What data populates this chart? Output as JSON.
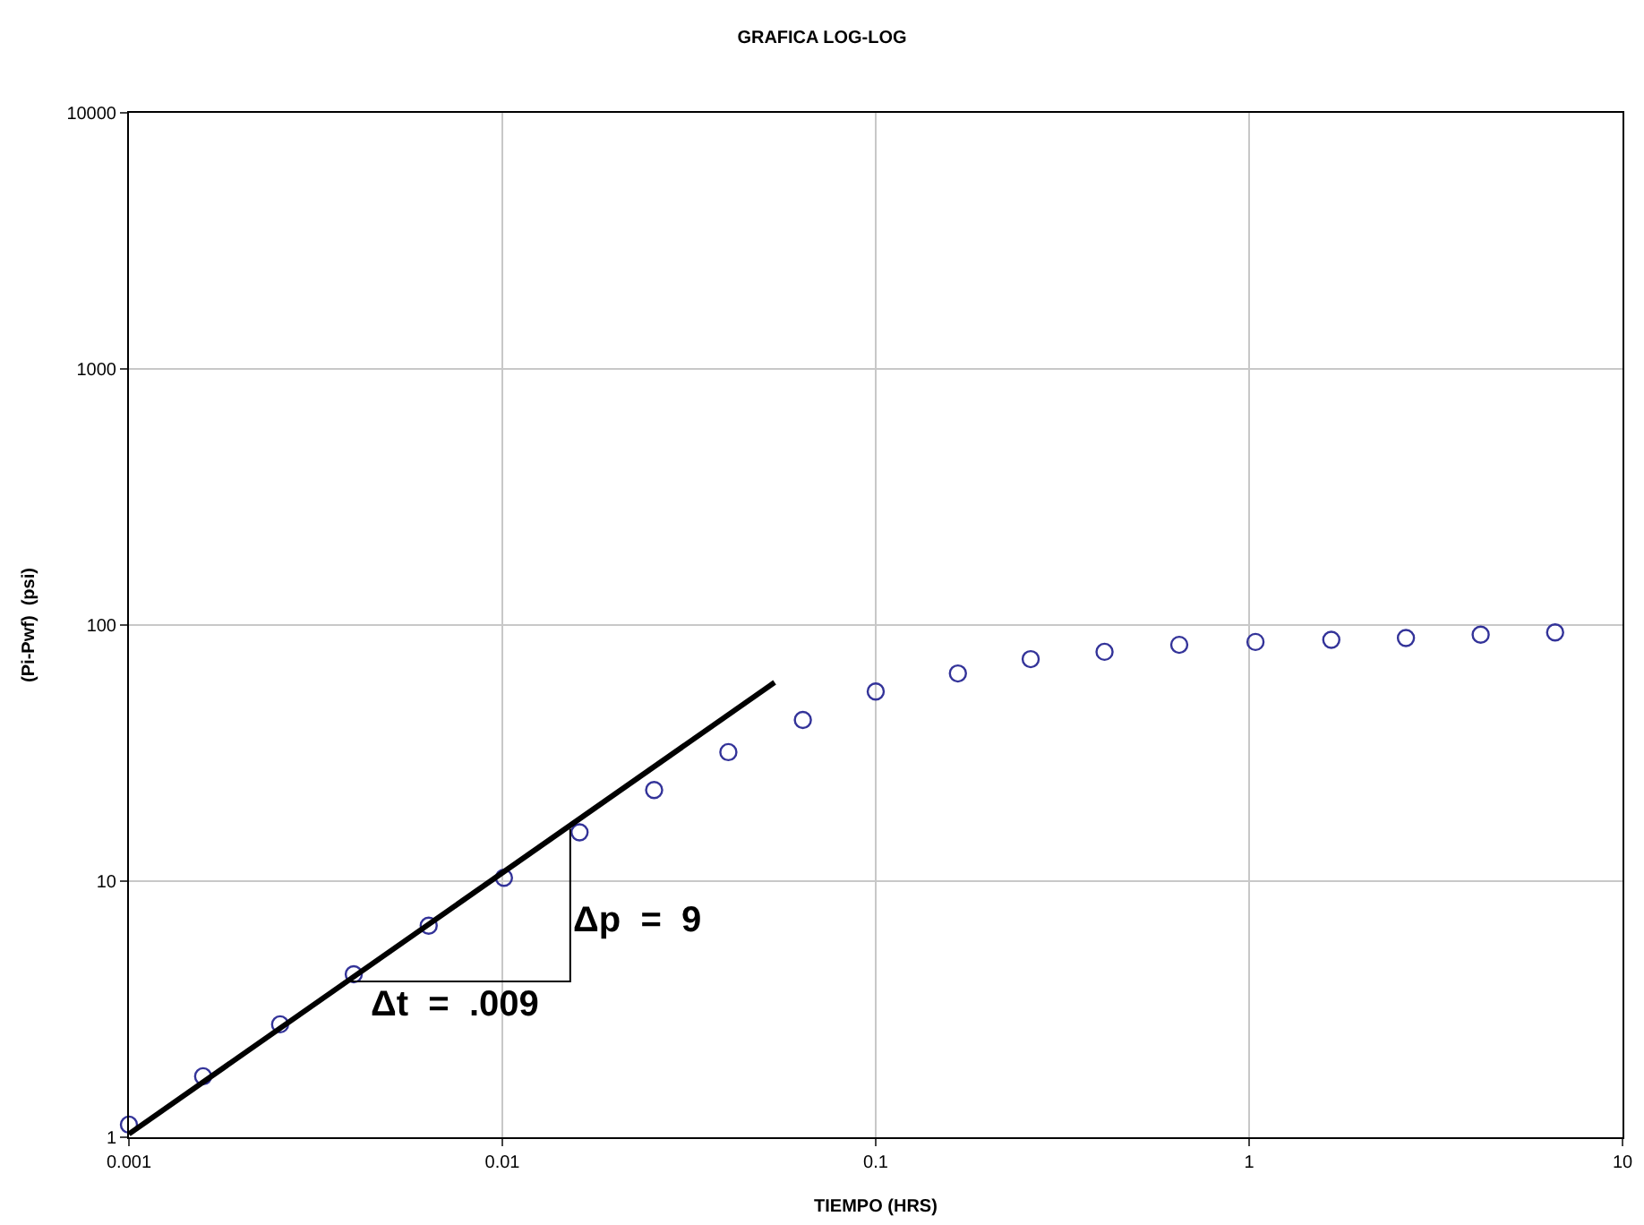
{
  "chart_data": {
    "type": "scatter",
    "title": "GRAFICA LOG-LOG",
    "xlabel": "TIEMPO (HRS)",
    "ylabel": "(Pi-Pwf)  (psi)",
    "log": "xy",
    "grid": true,
    "xlim": [
      0.001,
      10
    ],
    "xticks": [
      0.001,
      0.01,
      0.1,
      1,
      10
    ],
    "ylim": [
      1,
      10000
    ],
    "yticks": [
      1,
      10,
      100,
      1000,
      10000
    ],
    "series": [
      {
        "marker": "circle",
        "color": "#333399",
        "x": [
          0.001,
          0.00158,
          0.00254,
          0.004,
          0.00635,
          0.0101,
          0.0161,
          0.0255,
          0.0403,
          0.0638,
          0.1,
          0.166,
          0.26,
          0.41,
          0.65,
          1.04,
          1.66,
          2.63,
          4.17,
          6.6
        ],
        "values": [
          1.12,
          1.73,
          2.76,
          4.33,
          6.7,
          10.3,
          15.5,
          22.7,
          31.9,
          42.6,
          55,
          64.7,
          73.6,
          78.6,
          83.7,
          85.9,
          87.6,
          89,
          91.7,
          93.6
        ]
      },
      {
        "type": "line",
        "marker": "none",
        "color": "#000000",
        "x": [
          0.001,
          0.0536
        ],
        "values": [
          1.03,
          59.7
        ]
      },
      {
        "type": "line",
        "marker": "none",
        "color": "#000000",
        "x": [
          0.00376,
          0.0152,
          0.0152
        ],
        "values": [
          4.06,
          4.06,
          16
        ]
      }
    ],
    "annotations": [
      {
        "text": "Δp  =  9",
        "x": 0.0152,
        "y": 7
      },
      {
        "text": "Δt  =  .009",
        "x": 0.0075,
        "y": 4.06
      }
    ]
  }
}
